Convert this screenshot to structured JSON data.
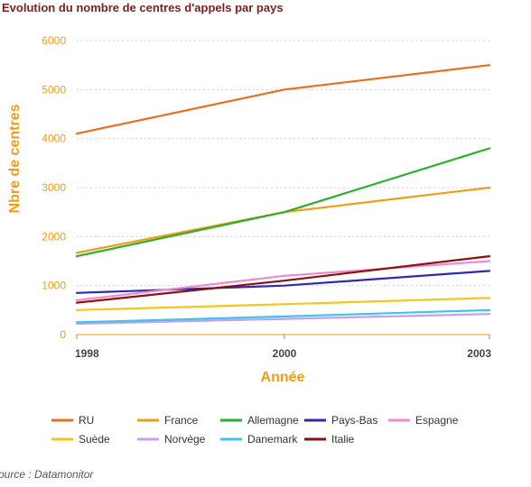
{
  "title": "Evolution du nombre de centres d'appels par pays",
  "source": "ource : Datamonitor",
  "chart_data": {
    "type": "line",
    "title": "Evolution du nombre de centres d'appels par pays",
    "xlabel": "Année",
    "ylabel": "Nbre de centres",
    "x": [
      "1998",
      "2000",
      "2003"
    ],
    "ylim": [
      0,
      6000
    ],
    "yticks": [
      "0",
      "1000",
      "2000",
      "3000",
      "4000",
      "5000",
      "6000"
    ],
    "grid": true,
    "legend_position": "bottom",
    "series": [
      {
        "name": "RU",
        "color": "#e8701a",
        "values": [
          4100,
          5000,
          5500
        ]
      },
      {
        "name": "France",
        "color": "#f39c12",
        "values": [
          1670,
          2500,
          3000
        ]
      },
      {
        "name": "Allemagne",
        "color": "#2bb02b",
        "values": [
          1600,
          2500,
          3800
        ]
      },
      {
        "name": "Pays-Bas",
        "color": "#2b2bb0",
        "values": [
          850,
          1000,
          1300
        ]
      },
      {
        "name": "Espagne",
        "color": "#f08acb",
        "values": [
          700,
          1200,
          1500
        ]
      },
      {
        "name": "Suède",
        "color": "#f5c518",
        "values": [
          500,
          620,
          750
        ]
      },
      {
        "name": "Norvège",
        "color": "#c9a0e6",
        "values": [
          220,
          320,
          420
        ]
      },
      {
        "name": "Danemark",
        "color": "#3cc4f0",
        "values": [
          250,
          370,
          500
        ]
      },
      {
        "name": "Italie",
        "color": "#8b0f0f",
        "values": [
          650,
          1100,
          1600
        ]
      }
    ]
  }
}
